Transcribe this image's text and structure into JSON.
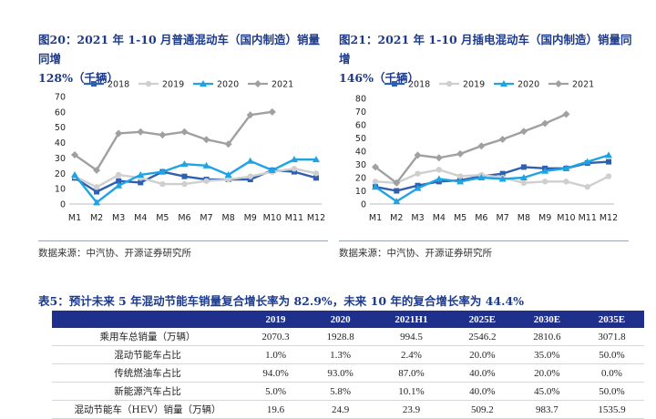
{
  "left_figure": {
    "title_line1": "图20：2021 年 1-10 月普通混动车（国内制造）销量同增",
    "title_line2": "128%（千辆）",
    "source": "数据来源：中汽协、开源证券研究所"
  },
  "right_figure": {
    "title_line1": "图21：2021 年 1-10 月插电混动车（国内制造）销量同增",
    "title_line2": "146%（千辆）",
    "source": "数据来源：中汽协、开源证券研究所"
  },
  "chart_data": [
    {
      "type": "line",
      "title": "",
      "categories": [
        "M1",
        "M2",
        "M3",
        "M4",
        "M5",
        "M6",
        "M7",
        "M8",
        "M9",
        "M10",
        "M11",
        "M12"
      ],
      "ylim": [
        0,
        70
      ],
      "yticks": [
        0,
        10,
        20,
        30,
        40,
        50,
        60,
        70
      ],
      "legend_position": "top",
      "grid": false,
      "series": [
        {
          "name": "2018",
          "color": "#2e5fb0",
          "marker": "square",
          "values": [
            17,
            8,
            15,
            14,
            21,
            18,
            16,
            16,
            16,
            22,
            21,
            17
          ]
        },
        {
          "name": "2019",
          "color": "#cfcfcf",
          "marker": "circle",
          "values": [
            18,
            11,
            19,
            17,
            13,
            13,
            15,
            16,
            18,
            21,
            23,
            20
          ]
        },
        {
          "name": "2020",
          "color": "#1fa3e3",
          "marker": "triangle",
          "values": [
            19,
            1,
            12,
            19,
            21,
            26,
            25,
            19,
            28,
            22,
            29,
            29
          ]
        },
        {
          "name": "2021",
          "color": "#a0a0a0",
          "marker": "diamond",
          "values": [
            32,
            22,
            46,
            47,
            45,
            47,
            42,
            39,
            58,
            60,
            null,
            null
          ]
        }
      ]
    },
    {
      "type": "line",
      "title": "",
      "categories": [
        "M1",
        "M2",
        "M3",
        "M4",
        "M5",
        "M6",
        "M7",
        "M8",
        "M9",
        "M10",
        "M11",
        "M12"
      ],
      "ylim": [
        0,
        80
      ],
      "yticks": [
        0,
        10,
        20,
        30,
        40,
        50,
        60,
        70,
        80
      ],
      "legend_position": "top",
      "grid": false,
      "series": [
        {
          "name": "2018",
          "color": "#2e5fb0",
          "marker": "square",
          "values": [
            13,
            10,
            14,
            17,
            18,
            21,
            23,
            28,
            27,
            27,
            31,
            32
          ]
        },
        {
          "name": "2019",
          "color": "#cfcfcf",
          "marker": "circle",
          "values": [
            17,
            16,
            23,
            26,
            21,
            22,
            20,
            16,
            17,
            17,
            13,
            21
          ]
        },
        {
          "name": "2020",
          "color": "#1fa3e3",
          "marker": "triangle",
          "values": [
            13,
            2,
            12,
            19,
            17,
            20,
            19,
            20,
            25,
            27,
            32,
            37
          ]
        },
        {
          "name": "2021",
          "color": "#a0a0a0",
          "marker": "diamond",
          "values": [
            28,
            16,
            37,
            35,
            38,
            44,
            49,
            55,
            61,
            68,
            null,
            null
          ]
        }
      ]
    }
  ],
  "table": {
    "title": "表5：预计未来 5 年混动节能车销量复合增长率为 82.9%，未来 10 年的复合增长率为 44.4%",
    "headers": [
      "",
      "2019",
      "2020",
      "2021H1",
      "2025E",
      "2030E",
      "2035E"
    ],
    "rows": [
      [
        "乘用车总销量（万辆）",
        "2070.3",
        "1928.8",
        "994.5",
        "2546.2",
        "2810.6",
        "3071.8"
      ],
      [
        "混动节能车占比",
        "1.0%",
        "1.3%",
        "2.4%",
        "20.0%",
        "35.0%",
        "50.0%"
      ],
      [
        "传统燃油车占比",
        "94.0%",
        "93.0%",
        "87.0%",
        "40.0%",
        "20.0%",
        "0.0%"
      ],
      [
        "新能源汽车占比",
        "5.0%",
        "5.8%",
        "10.1%",
        "40.0%",
        "45.0%",
        "50.0%"
      ],
      [
        "混动节能车（HEV）销量（万辆）",
        "19.6",
        "24.9",
        "23.9",
        "509.2",
        "983.7",
        "1535.9"
      ]
    ]
  }
}
